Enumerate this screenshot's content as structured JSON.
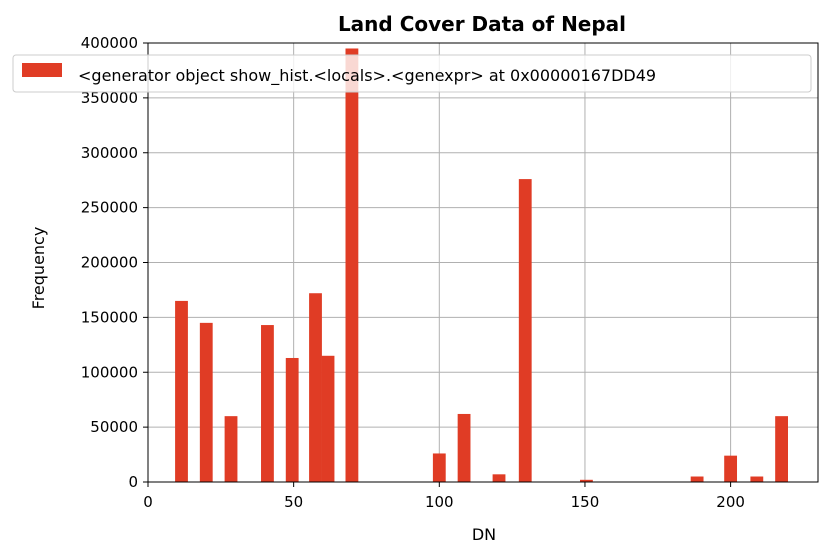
{
  "chart_data": {
    "type": "bar",
    "title": "Land Cover Data of Nepal",
    "xlabel": "DN",
    "ylabel": "Frequency",
    "xlim": [
      0,
      230
    ],
    "ylim": [
      0,
      400000
    ],
    "bar_width": 4.4,
    "bar_color": "#e03c25",
    "grid": true,
    "xticks": [
      0,
      50,
      100,
      150,
      200
    ],
    "yticks": [
      0,
      50000,
      100000,
      150000,
      200000,
      250000,
      300000,
      350000,
      400000
    ],
    "legend": {
      "placement": "top",
      "label": "<generator object show_hist.<locals>.<genexpr> at 0x00000167DD49"
    },
    "bars": [
      {
        "x": 11.5,
        "value": 165000
      },
      {
        "x": 20,
        "value": 145000
      },
      {
        "x": 28.5,
        "value": 60000
      },
      {
        "x": 41,
        "value": 143000
      },
      {
        "x": 49.5,
        "value": 113000
      },
      {
        "x": 57.5,
        "value": 172000
      },
      {
        "x": 61.8,
        "value": 115000
      },
      {
        "x": 70,
        "value": 395000
      },
      {
        "x": 100,
        "value": 26000
      },
      {
        "x": 108.5,
        "value": 62000
      },
      {
        "x": 120.5,
        "value": 7000
      },
      {
        "x": 129.5,
        "value": 276000
      },
      {
        "x": 150.5,
        "value": 2000
      },
      {
        "x": 188.5,
        "value": 5000
      },
      {
        "x": 200,
        "value": 24000
      },
      {
        "x": 209,
        "value": 5000
      },
      {
        "x": 217.5,
        "value": 60000
      }
    ]
  }
}
